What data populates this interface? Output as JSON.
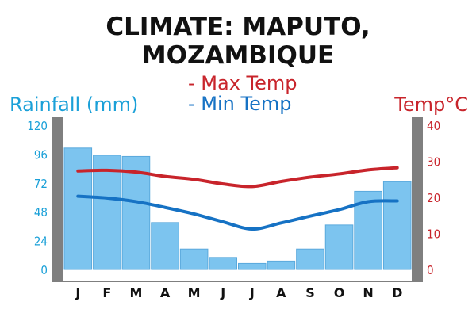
{
  "chart_data": {
    "type": "bar",
    "title_lines": [
      "CLIMATE: MAPUTO,",
      "MOZAMBIQUE"
    ],
    "categories": [
      "J",
      "F",
      "M",
      "A",
      "M",
      "J",
      "J",
      "A",
      "S",
      "O",
      "N",
      "D"
    ],
    "rainfall": {
      "axis_label": "Rainfall (mm)",
      "ylim": [
        0,
        120
      ],
      "ticks": [
        "0",
        "24",
        "48",
        "72",
        "96",
        "120"
      ],
      "values": [
        101,
        95,
        94,
        39,
        17,
        10,
        5,
        7,
        17,
        37,
        65,
        73
      ],
      "color": "#7cc4ef"
    },
    "temperature": {
      "axis_label": "Temp°C",
      "ylim": [
        0,
        40
      ],
      "ticks": [
        "0",
        "10",
        "20",
        "30",
        "40"
      ],
      "series": [
        {
          "name": "- Max Temp",
          "values": [
            27.3,
            27.5,
            27,
            25.8,
            25,
            23.7,
            23,
            24.4,
            25.6,
            26.5,
            27.6,
            28.2
          ],
          "color": "#c8242b"
        },
        {
          "name": "- Min Temp",
          "values": [
            20.3,
            19.8,
            18.8,
            17.2,
            15.4,
            13.2,
            11.2,
            12.9,
            14.8,
            16.6,
            18.8,
            19.0
          ],
          "color": "#1672c4"
        }
      ]
    },
    "grid": false,
    "legend": "top-center",
    "axis_frame_color": "#7f7f7f"
  }
}
